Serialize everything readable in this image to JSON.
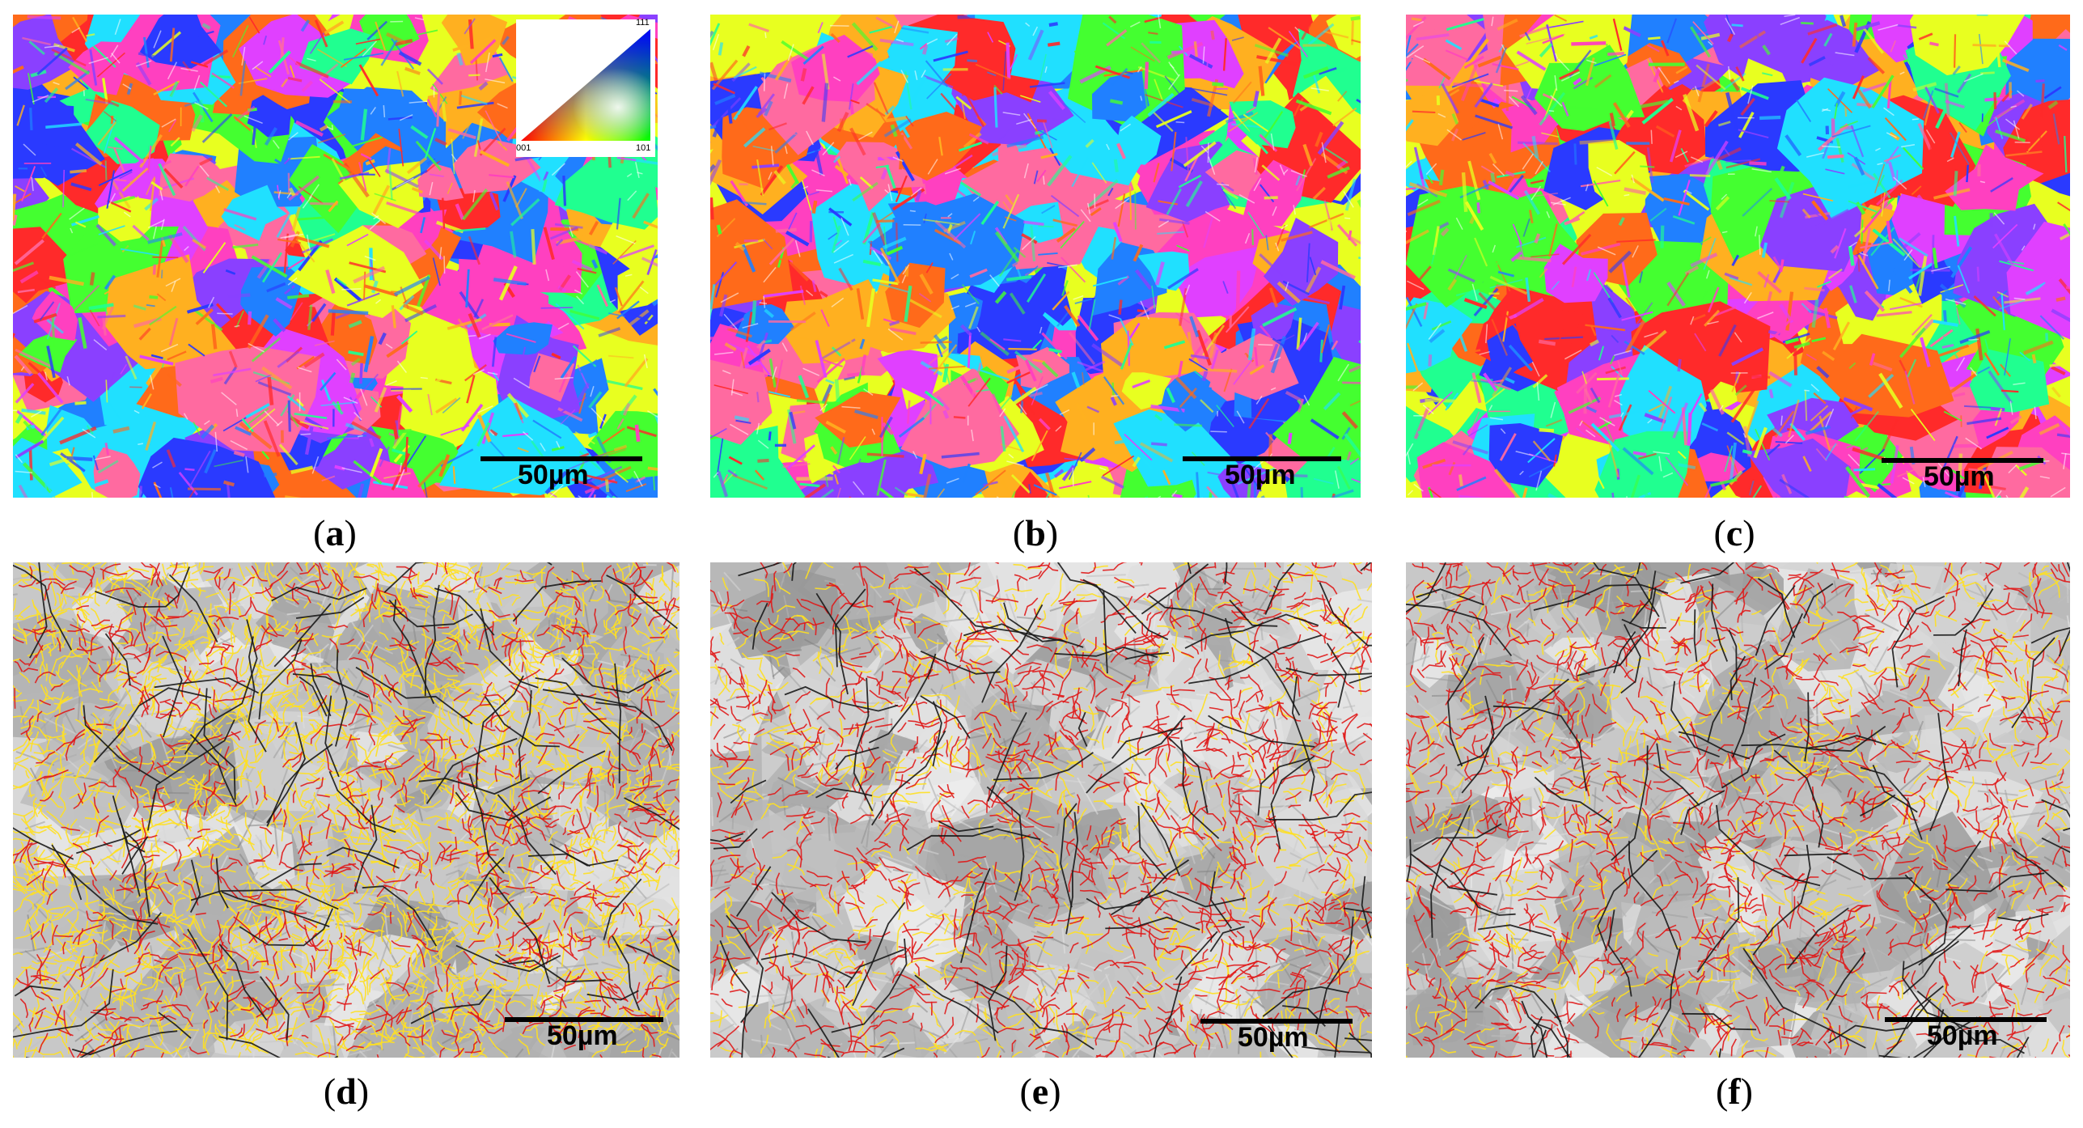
{
  "panels": [
    {
      "id": "a",
      "caption": "a",
      "kind": "ipf",
      "seed": 11,
      "scale_label": "50µm"
    },
    {
      "id": "b",
      "caption": "b",
      "kind": "ipf",
      "seed": 23,
      "scale_label": "50µm"
    },
    {
      "id": "c",
      "caption": "c",
      "kind": "ipf",
      "seed": 37,
      "scale_label": "50µm"
    },
    {
      "id": "d",
      "caption": "d",
      "kind": "boundary",
      "seed": 41,
      "density": "high",
      "scale_label": "50µm"
    },
    {
      "id": "e",
      "caption": "e",
      "kind": "boundary",
      "seed": 53,
      "density": "medium",
      "scale_label": "50µm"
    },
    {
      "id": "f",
      "caption": "f",
      "kind": "boundary",
      "seed": 67,
      "density": "medium",
      "scale_label": "50µm"
    }
  ],
  "ipf_legend": {
    "tick_111": "111",
    "tick_001": "001",
    "tick_101": "101"
  },
  "colors": {
    "ipf_palette": [
      "#ff2a2a",
      "#ff6a1a",
      "#ffb020",
      "#e8ff20",
      "#44ff30",
      "#20ff90",
      "#20e0ff",
      "#2080ff",
      "#2a3aff",
      "#8a40ff",
      "#e040ff",
      "#ff40c0",
      "#ff6aa0"
    ],
    "boundary_high": "#1a1a1a",
    "boundary_red": "#e01818",
    "boundary_yellow": "#ffe020",
    "gray_background": "#c8c8c8"
  }
}
